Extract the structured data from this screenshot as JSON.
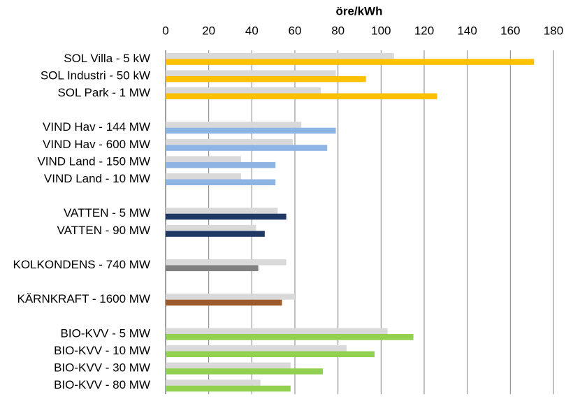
{
  "chart_data": {
    "type": "bar",
    "orientation": "horizontal",
    "title": "öre/kWh",
    "categories": [
      "SOL Villa - 5 kW",
      "SOL Industri - 50 kW",
      "SOL Park - 1 MW",
      null,
      "VIND Hav - 144 MW",
      "VIND Hav - 600 MW",
      "VIND Land - 150 MW",
      "VIND Land - 10 MW",
      null,
      "VATTEN - 5 MW",
      "VATTEN - 90 MW",
      null,
      "KOLKONDENS - 740 MW",
      null,
      "KÄRNKRAFT - 1600 MW",
      null,
      "BIO-KVV - 5 MW",
      "BIO-KVV - 10 MW",
      "BIO-KVV - 30 MW",
      "BIO-KVV - 80 MW"
    ],
    "series": [
      {
        "color": "#d9d9d9",
        "values": [
          106,
          79,
          72,
          null,
          63,
          59,
          35,
          35,
          null,
          52,
          42,
          null,
          56,
          null,
          60,
          null,
          103,
          84,
          58,
          44
        ]
      },
      {
        "colors": [
          "#ffc000",
          "#ffc000",
          "#ffc000",
          null,
          "#8db4e2",
          "#8db4e2",
          "#8db4e2",
          "#8db4e2",
          null,
          "#1f3864",
          "#1f3864",
          null,
          "#808080",
          null,
          "#9c5b2a",
          null,
          "#92d050",
          "#92d050",
          "#92d050",
          "#92d050"
        ],
        "values": [
          171,
          93,
          126,
          null,
          79,
          75,
          51,
          51,
          null,
          56,
          46,
          null,
          43,
          null,
          54,
          null,
          115,
          97,
          73,
          58
        ]
      }
    ],
    "xlim": [
      0,
      180
    ],
    "xticks": [
      0,
      20,
      40,
      60,
      80,
      100,
      120,
      140,
      160,
      180
    ],
    "grid": true
  }
}
